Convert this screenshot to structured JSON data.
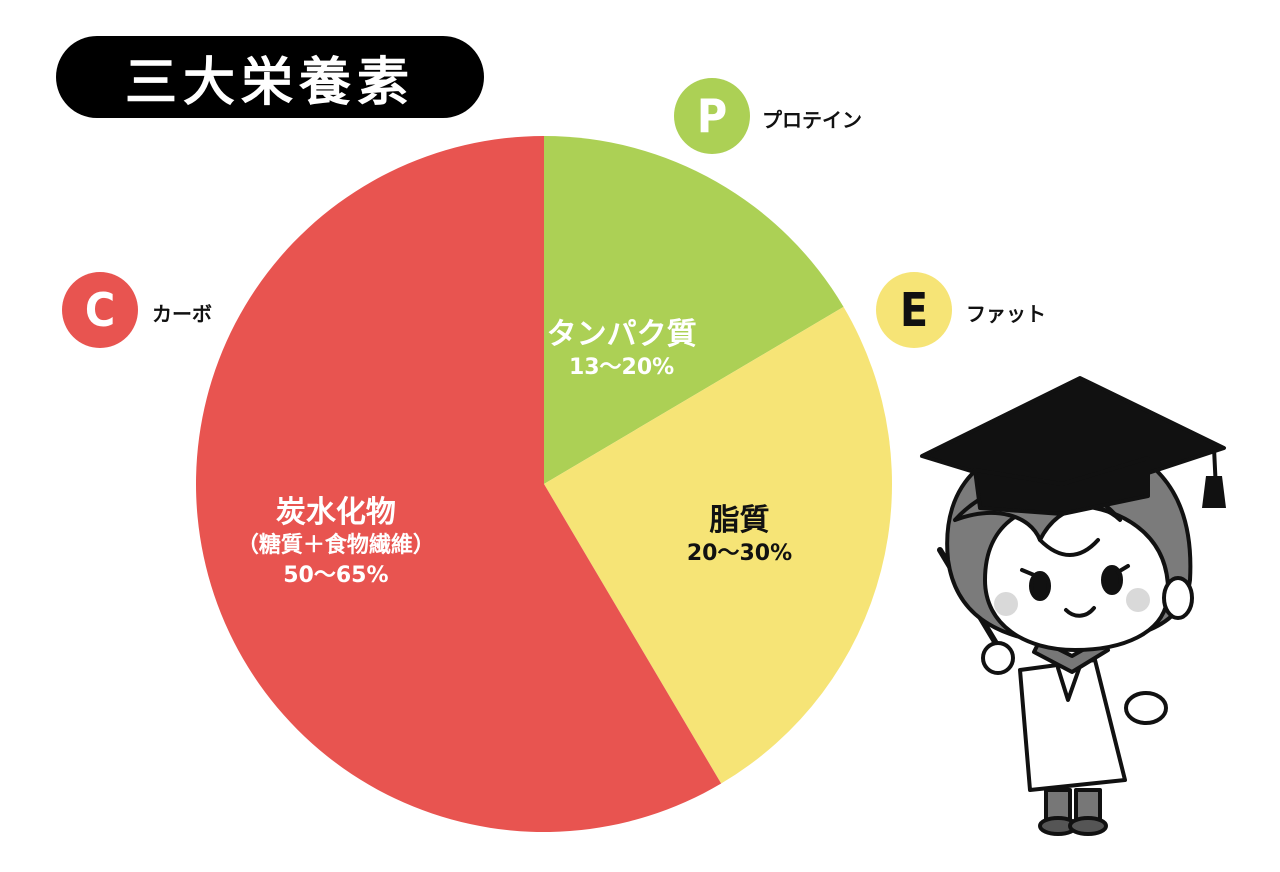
{
  "header": {
    "title": "三大栄養素"
  },
  "chart_data": {
    "type": "pie",
    "title": "",
    "slices": [
      {
        "key": "protein",
        "name": "タンパク質",
        "range": "13〜20%",
        "value": 16.5,
        "color": "#acd055",
        "label_color": "#ffffff"
      },
      {
        "key": "fat",
        "name": "脂質",
        "range": "20〜30%",
        "value": 25,
        "color": "#f6e476",
        "label_color": "#111111"
      },
      {
        "key": "carb",
        "name": "炭水化物",
        "sub": "（糖質＋食物繊維）",
        "range": "50〜65%",
        "value": 58.5,
        "color": "#e85450",
        "label_color": "#ffffff"
      }
    ]
  },
  "legend": [
    {
      "letter": "C",
      "text": "カーボ",
      "color": "#e85450",
      "letter_color": "#ffffff"
    },
    {
      "letter": "P",
      "text": "プロテイン",
      "color": "#acd055",
      "letter_color": "#ffffff"
    },
    {
      "letter": "E",
      "text": "ファット",
      "color": "#f6e476",
      "letter_color": "#111111"
    }
  ],
  "illustration": {
    "icon": "professor-illustration"
  }
}
